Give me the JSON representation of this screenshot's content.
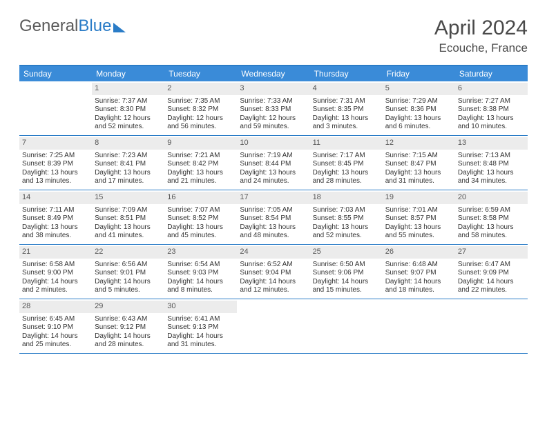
{
  "logo": {
    "text1": "General",
    "text2": "Blue"
  },
  "title": "April 2024",
  "location": "Ecouche, France",
  "colors": {
    "header_bg": "#3a8bd8",
    "border": "#2a7cc7",
    "daynum_bg": "#ececec",
    "text": "#333333"
  },
  "day_names": [
    "Sunday",
    "Monday",
    "Tuesday",
    "Wednesday",
    "Thursday",
    "Friday",
    "Saturday"
  ],
  "weeks": [
    [
      {
        "n": "",
        "sr": "",
        "ss": "",
        "dl": ""
      },
      {
        "n": "1",
        "sr": "Sunrise: 7:37 AM",
        "ss": "Sunset: 8:30 PM",
        "dl": "Daylight: 12 hours and 52 minutes."
      },
      {
        "n": "2",
        "sr": "Sunrise: 7:35 AM",
        "ss": "Sunset: 8:32 PM",
        "dl": "Daylight: 12 hours and 56 minutes."
      },
      {
        "n": "3",
        "sr": "Sunrise: 7:33 AM",
        "ss": "Sunset: 8:33 PM",
        "dl": "Daylight: 12 hours and 59 minutes."
      },
      {
        "n": "4",
        "sr": "Sunrise: 7:31 AM",
        "ss": "Sunset: 8:35 PM",
        "dl": "Daylight: 13 hours and 3 minutes."
      },
      {
        "n": "5",
        "sr": "Sunrise: 7:29 AM",
        "ss": "Sunset: 8:36 PM",
        "dl": "Daylight: 13 hours and 6 minutes."
      },
      {
        "n": "6",
        "sr": "Sunrise: 7:27 AM",
        "ss": "Sunset: 8:38 PM",
        "dl": "Daylight: 13 hours and 10 minutes."
      }
    ],
    [
      {
        "n": "7",
        "sr": "Sunrise: 7:25 AM",
        "ss": "Sunset: 8:39 PM",
        "dl": "Daylight: 13 hours and 13 minutes."
      },
      {
        "n": "8",
        "sr": "Sunrise: 7:23 AM",
        "ss": "Sunset: 8:41 PM",
        "dl": "Daylight: 13 hours and 17 minutes."
      },
      {
        "n": "9",
        "sr": "Sunrise: 7:21 AM",
        "ss": "Sunset: 8:42 PM",
        "dl": "Daylight: 13 hours and 21 minutes."
      },
      {
        "n": "10",
        "sr": "Sunrise: 7:19 AM",
        "ss": "Sunset: 8:44 PM",
        "dl": "Daylight: 13 hours and 24 minutes."
      },
      {
        "n": "11",
        "sr": "Sunrise: 7:17 AM",
        "ss": "Sunset: 8:45 PM",
        "dl": "Daylight: 13 hours and 28 minutes."
      },
      {
        "n": "12",
        "sr": "Sunrise: 7:15 AM",
        "ss": "Sunset: 8:47 PM",
        "dl": "Daylight: 13 hours and 31 minutes."
      },
      {
        "n": "13",
        "sr": "Sunrise: 7:13 AM",
        "ss": "Sunset: 8:48 PM",
        "dl": "Daylight: 13 hours and 34 minutes."
      }
    ],
    [
      {
        "n": "14",
        "sr": "Sunrise: 7:11 AM",
        "ss": "Sunset: 8:49 PM",
        "dl": "Daylight: 13 hours and 38 minutes."
      },
      {
        "n": "15",
        "sr": "Sunrise: 7:09 AM",
        "ss": "Sunset: 8:51 PM",
        "dl": "Daylight: 13 hours and 41 minutes."
      },
      {
        "n": "16",
        "sr": "Sunrise: 7:07 AM",
        "ss": "Sunset: 8:52 PM",
        "dl": "Daylight: 13 hours and 45 minutes."
      },
      {
        "n": "17",
        "sr": "Sunrise: 7:05 AM",
        "ss": "Sunset: 8:54 PM",
        "dl": "Daylight: 13 hours and 48 minutes."
      },
      {
        "n": "18",
        "sr": "Sunrise: 7:03 AM",
        "ss": "Sunset: 8:55 PM",
        "dl": "Daylight: 13 hours and 52 minutes."
      },
      {
        "n": "19",
        "sr": "Sunrise: 7:01 AM",
        "ss": "Sunset: 8:57 PM",
        "dl": "Daylight: 13 hours and 55 minutes."
      },
      {
        "n": "20",
        "sr": "Sunrise: 6:59 AM",
        "ss": "Sunset: 8:58 PM",
        "dl": "Daylight: 13 hours and 58 minutes."
      }
    ],
    [
      {
        "n": "21",
        "sr": "Sunrise: 6:58 AM",
        "ss": "Sunset: 9:00 PM",
        "dl": "Daylight: 14 hours and 2 minutes."
      },
      {
        "n": "22",
        "sr": "Sunrise: 6:56 AM",
        "ss": "Sunset: 9:01 PM",
        "dl": "Daylight: 14 hours and 5 minutes."
      },
      {
        "n": "23",
        "sr": "Sunrise: 6:54 AM",
        "ss": "Sunset: 9:03 PM",
        "dl": "Daylight: 14 hours and 8 minutes."
      },
      {
        "n": "24",
        "sr": "Sunrise: 6:52 AM",
        "ss": "Sunset: 9:04 PM",
        "dl": "Daylight: 14 hours and 12 minutes."
      },
      {
        "n": "25",
        "sr": "Sunrise: 6:50 AM",
        "ss": "Sunset: 9:06 PM",
        "dl": "Daylight: 14 hours and 15 minutes."
      },
      {
        "n": "26",
        "sr": "Sunrise: 6:48 AM",
        "ss": "Sunset: 9:07 PM",
        "dl": "Daylight: 14 hours and 18 minutes."
      },
      {
        "n": "27",
        "sr": "Sunrise: 6:47 AM",
        "ss": "Sunset: 9:09 PM",
        "dl": "Daylight: 14 hours and 22 minutes."
      }
    ],
    [
      {
        "n": "28",
        "sr": "Sunrise: 6:45 AM",
        "ss": "Sunset: 9:10 PM",
        "dl": "Daylight: 14 hours and 25 minutes."
      },
      {
        "n": "29",
        "sr": "Sunrise: 6:43 AM",
        "ss": "Sunset: 9:12 PM",
        "dl": "Daylight: 14 hours and 28 minutes."
      },
      {
        "n": "30",
        "sr": "Sunrise: 6:41 AM",
        "ss": "Sunset: 9:13 PM",
        "dl": "Daylight: 14 hours and 31 minutes."
      },
      {
        "n": "",
        "sr": "",
        "ss": "",
        "dl": ""
      },
      {
        "n": "",
        "sr": "",
        "ss": "",
        "dl": ""
      },
      {
        "n": "",
        "sr": "",
        "ss": "",
        "dl": ""
      },
      {
        "n": "",
        "sr": "",
        "ss": "",
        "dl": ""
      }
    ]
  ]
}
